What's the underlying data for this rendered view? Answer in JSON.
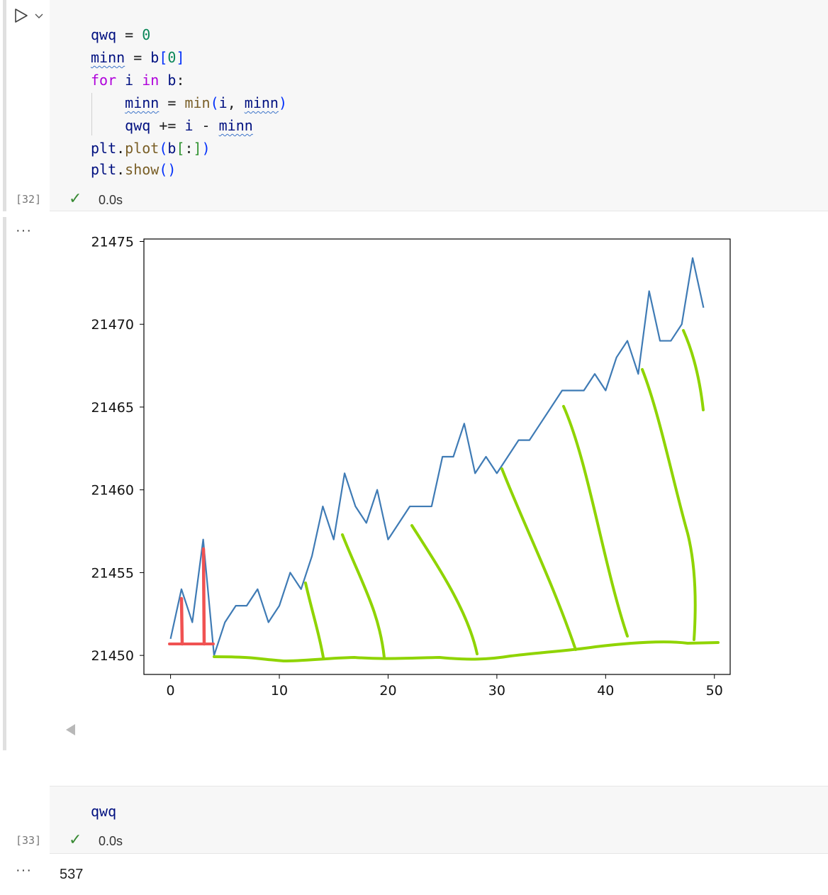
{
  "cell1": {
    "exec_count": "[32]",
    "status_time": "0.0s",
    "code_lines": [
      [
        {
          "t": "qwq",
          "c": "var"
        },
        {
          "t": " = ",
          "c": ""
        },
        {
          "t": "0",
          "c": "num"
        }
      ],
      [
        {
          "t": "minn",
          "c": "var squig"
        },
        {
          "t": " = ",
          "c": ""
        },
        {
          "t": "b",
          "c": "var"
        },
        {
          "t": "[",
          "c": "p1"
        },
        {
          "t": "0",
          "c": "num"
        },
        {
          "t": "]",
          "c": "p1"
        }
      ],
      [
        {
          "t": "for",
          "c": "kw"
        },
        {
          "t": " ",
          "c": ""
        },
        {
          "t": "i",
          "c": "var"
        },
        {
          "t": " ",
          "c": ""
        },
        {
          "t": "in",
          "c": "kw"
        },
        {
          "t": " ",
          "c": ""
        },
        {
          "t": "b",
          "c": "var"
        },
        {
          "t": ":",
          "c": ""
        }
      ],
      [
        {
          "t": "    ",
          "c": ""
        },
        {
          "t": "minn",
          "c": "var squig"
        },
        {
          "t": " = ",
          "c": ""
        },
        {
          "t": "min",
          "c": "fn"
        },
        {
          "t": "(",
          "c": "p1"
        },
        {
          "t": "i",
          "c": "var"
        },
        {
          "t": ", ",
          "c": ""
        },
        {
          "t": "minn",
          "c": "var squig"
        },
        {
          "t": ")",
          "c": "p1"
        }
      ],
      [
        {
          "t": "    ",
          "c": ""
        },
        {
          "t": "qwq",
          "c": "var"
        },
        {
          "t": " += ",
          "c": ""
        },
        {
          "t": "i",
          "c": "var"
        },
        {
          "t": " - ",
          "c": ""
        },
        {
          "t": "minn",
          "c": "var squig"
        }
      ],
      [
        {
          "t": "plt",
          "c": "var"
        },
        {
          "t": ".",
          "c": ""
        },
        {
          "t": "plot",
          "c": "fn"
        },
        {
          "t": "(",
          "c": "p1"
        },
        {
          "t": "b",
          "c": "var"
        },
        {
          "t": "[",
          "c": "p2"
        },
        {
          "t": ":",
          "c": ""
        },
        {
          "t": "]",
          "c": "p2"
        },
        {
          "t": ")",
          "c": "p1"
        }
      ],
      [
        {
          "t": "plt",
          "c": "var"
        },
        {
          "t": ".",
          "c": ""
        },
        {
          "t": "show",
          "c": "fn"
        },
        {
          "t": "()",
          "c": "p1"
        }
      ]
    ]
  },
  "output1": {
    "more_label": "···",
    "chart_data": {
      "type": "line",
      "x": [
        0,
        1,
        2,
        3,
        4,
        5,
        6,
        7,
        8,
        9,
        10,
        11,
        12,
        13,
        14,
        15,
        16,
        17,
        18,
        19,
        20,
        21,
        22,
        23,
        24,
        25,
        26,
        27,
        28,
        29,
        30,
        31,
        32,
        33,
        34,
        35,
        36,
        37,
        38,
        39,
        40,
        41,
        42,
        43,
        44,
        45,
        46,
        47,
        48,
        49
      ],
      "series": [
        {
          "values": [
            21451,
            21454,
            21452,
            21457,
            21450,
            21452,
            21453,
            21453,
            21454,
            21452,
            21453,
            21455,
            21454,
            21456,
            21459,
            21457,
            21461,
            21459,
            21458,
            21460,
            21457,
            21458,
            21459,
            21459,
            21459,
            21462,
            21462,
            21464,
            21461,
            21462,
            21461,
            21462,
            21463,
            21463,
            21464,
            21465,
            21466,
            21466,
            21466,
            21467,
            21466,
            21468,
            21469,
            21467,
            21472,
            21469,
            21469,
            21470,
            21474,
            21471
          ],
          "color": "#3f7bb5"
        }
      ],
      "xlim": [
        -2.45,
        51.45
      ],
      "ylim": [
        21448.85,
        21475.15
      ],
      "xticks": [
        "0",
        "10",
        "20",
        "30",
        "40",
        "50"
      ],
      "yticks": [
        "21450",
        "21455",
        "21460",
        "21465",
        "21470",
        "21475"
      ],
      "grid": false,
      "title": "",
      "xlabel": "",
      "ylabel": ""
    },
    "annotations": {
      "red_color": "#f05252",
      "green_color": "#8fd400"
    }
  },
  "cell2": {
    "exec_count": "[33]",
    "status_time": "0.0s",
    "code_line": "qwq"
  },
  "output2": {
    "more_label": "···",
    "value": "537"
  }
}
